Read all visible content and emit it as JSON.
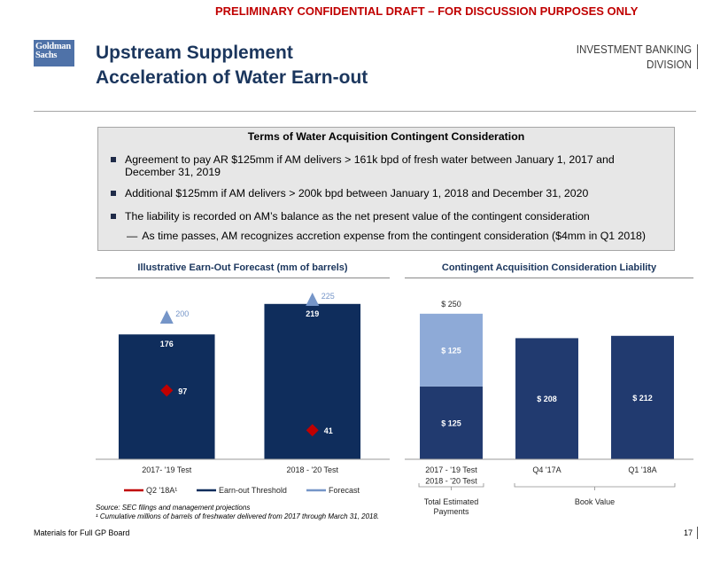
{
  "banner": "PRELIMINARY CONFIDENTIAL DRAFT – FOR DISCUSSION PURPOSES ONLY",
  "logo": {
    "line1": "Goldman",
    "line2": "Sachs"
  },
  "title": {
    "line1": "Upstream Supplement",
    "line2": "Acceleration of Water Earn-out"
  },
  "division": {
    "line1": "INVESTMENT BANKING",
    "line2": "DIVISION"
  },
  "terms": {
    "heading": "Terms of Water Acquisition Contingent Consideration",
    "bullets": [
      "Agreement to pay AR $125mm if AM delivers > 161k bpd of fresh water between January 1, 2017 and December 31, 2019",
      "Additional $125mm if AM delivers > 200k bpd between January 1, 2018 and December 31, 2020",
      "The liability is recorded on AM’s balance as the net present value of the contingent consideration"
    ],
    "sub_bullet": {
      "marker": "—",
      "text": "As time passes, AM recognizes accretion expense from the contingent consideration ($4mm in Q1 2018)"
    }
  },
  "chart_data": [
    {
      "type": "bar",
      "title": "Illustrative Earn-Out Forecast (mm of barrels)",
      "categories": [
        "2017- '19 Test",
        "2018 - '20 Test"
      ],
      "series": [
        {
          "name": "Earn-out Threshold",
          "values": [
            176,
            219
          ],
          "color": "#0f2d5c"
        },
        {
          "name": "Forecast",
          "values": [
            200,
            225
          ],
          "color": "#7595c8"
        },
        {
          "name": "Q2 '18A¹",
          "values": [
            97,
            41
          ],
          "color": "#c00000"
        }
      ],
      "ylim": [
        0,
        250
      ],
      "grid": false
    },
    {
      "type": "bar",
      "stacked": true,
      "title": "Contingent Acquisition Consideration Liability",
      "categories": [
        [
          "2017 - '19 Test",
          "2018 - '20 Test"
        ],
        [
          "Q4 '17A"
        ],
        [
          "Q1 '18A"
        ]
      ],
      "series": [
        {
          "values": [
            125,
            208,
            212
          ],
          "color": "#213a6f"
        },
        {
          "values": [
            125,
            null,
            null
          ],
          "color": "#8eaad7"
        }
      ],
      "totals": [
        250,
        null,
        null
      ],
      "value_prefix": "$ ",
      "groups": [
        {
          "label": [
            "Total Estimated",
            "Payments"
          ],
          "from": 0,
          "to": 0
        },
        {
          "label": [
            "Book Value"
          ],
          "from": 1,
          "to": 2
        }
      ],
      "ylim": [
        0,
        300
      ],
      "grid": false
    }
  ],
  "footnotes": {
    "source": "Source: SEC filings and management projections",
    "note": "¹ Cumulative millions of barrels of freshwater delivered from 2017 through March 31, 2018."
  },
  "footer": {
    "label": "Materials for Full GP Board",
    "page": "17"
  }
}
